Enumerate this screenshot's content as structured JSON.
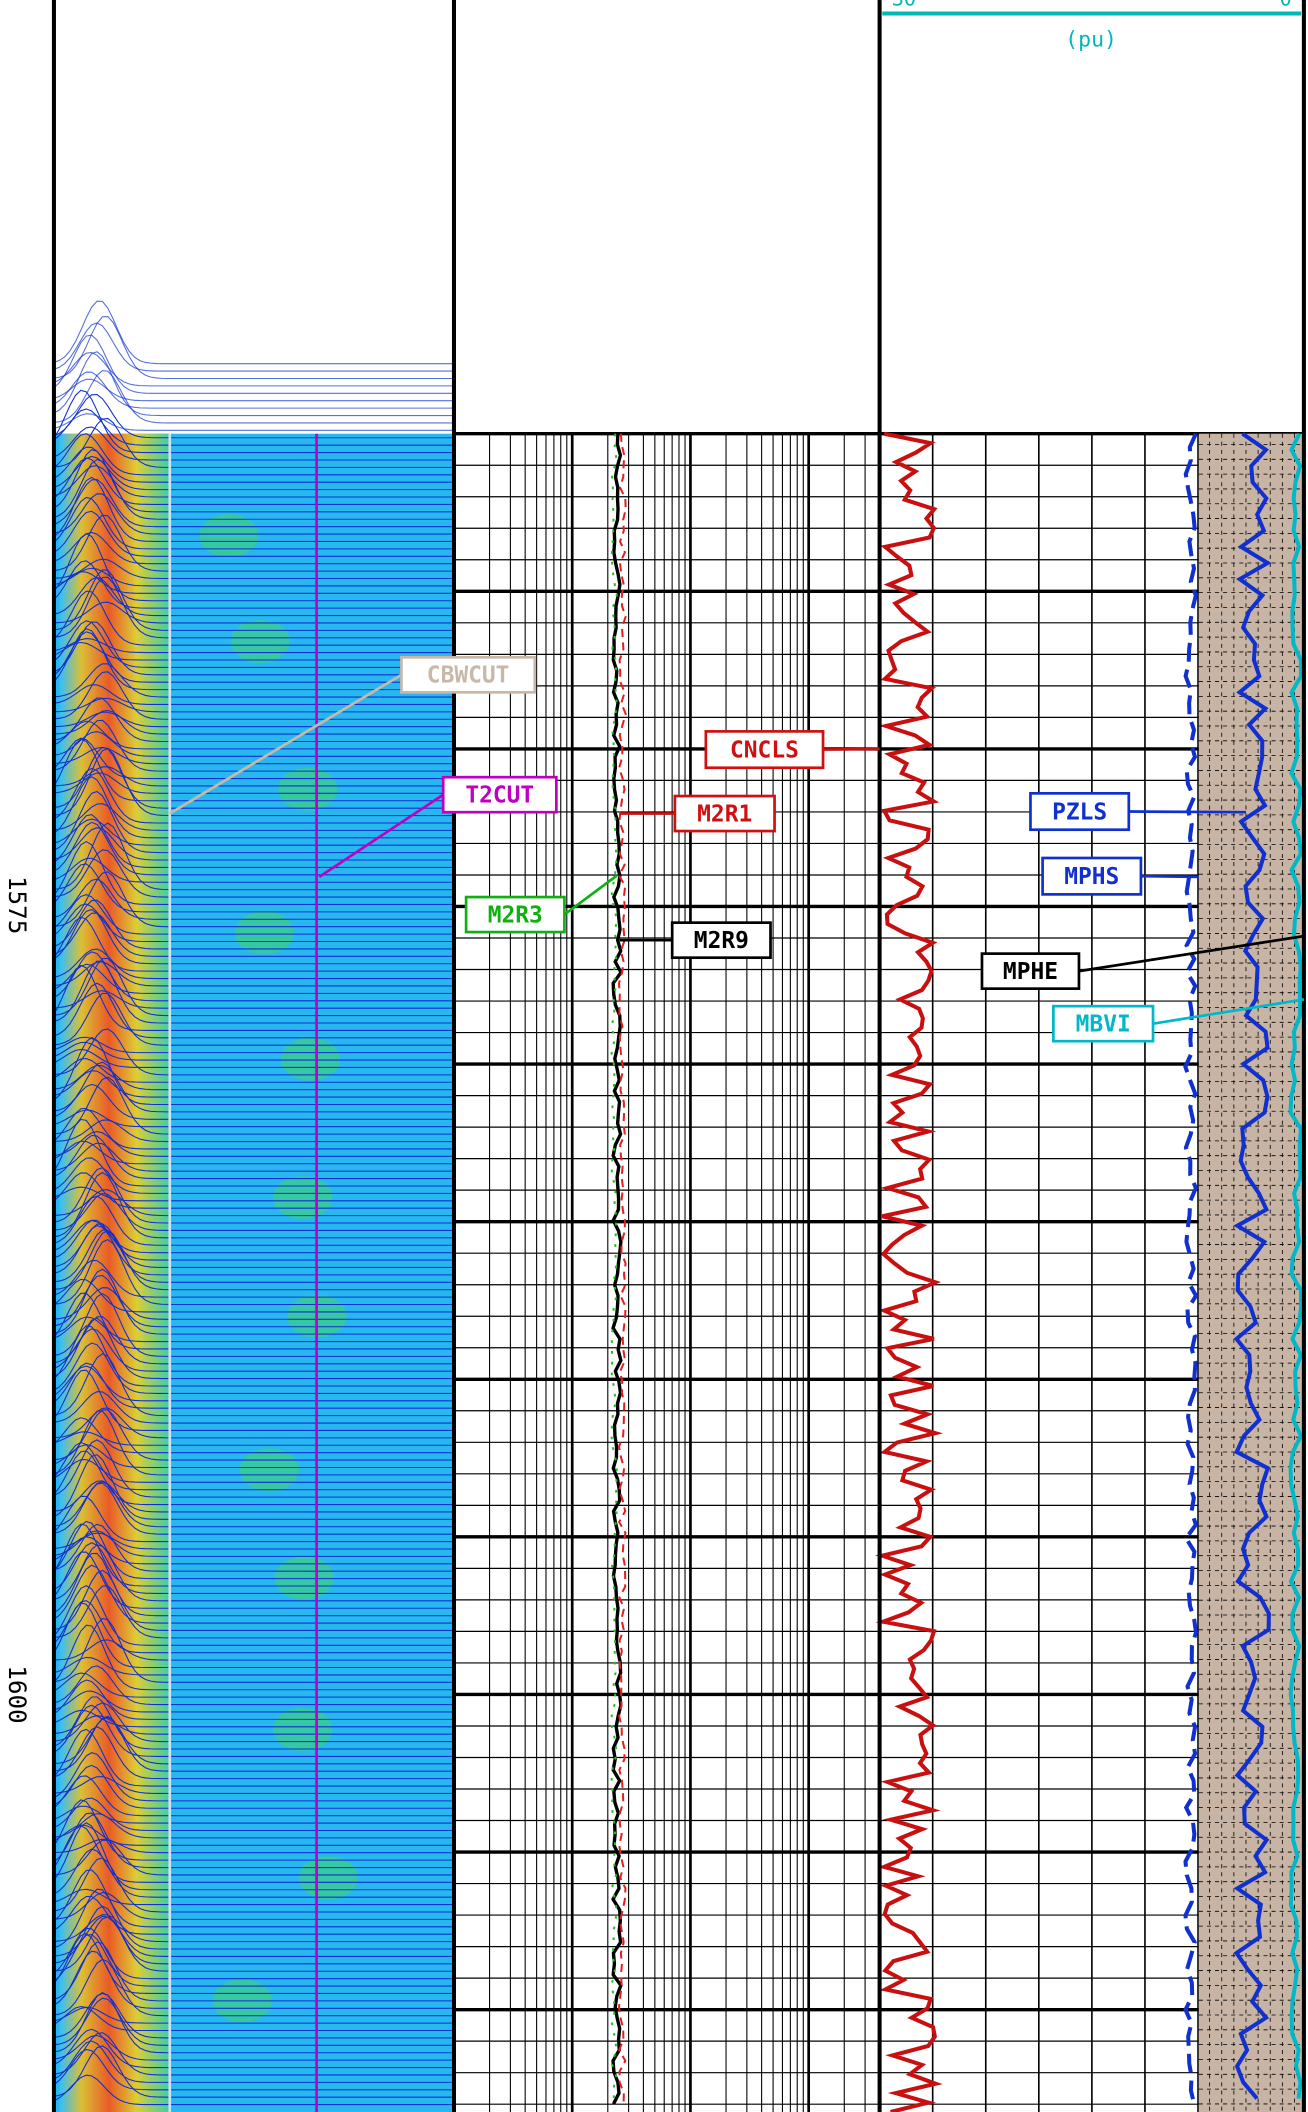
{
  "header": {
    "scale_left": "30",
    "scale_right": "0",
    "unit": "(pu)"
  },
  "depths": [
    "1575",
    "1600"
  ],
  "labels": {
    "cbwcut": "CBWCUT",
    "t2cut": "T2CUT",
    "cncls": "CNCLS",
    "m2r1": "M2R1",
    "pzls": "PZLS",
    "mphs": "MPHS",
    "m2r3": "M2R3",
    "m2r9": "M2R9",
    "mphe": "MPHE",
    "mbvi": "MBVI"
  }
}
